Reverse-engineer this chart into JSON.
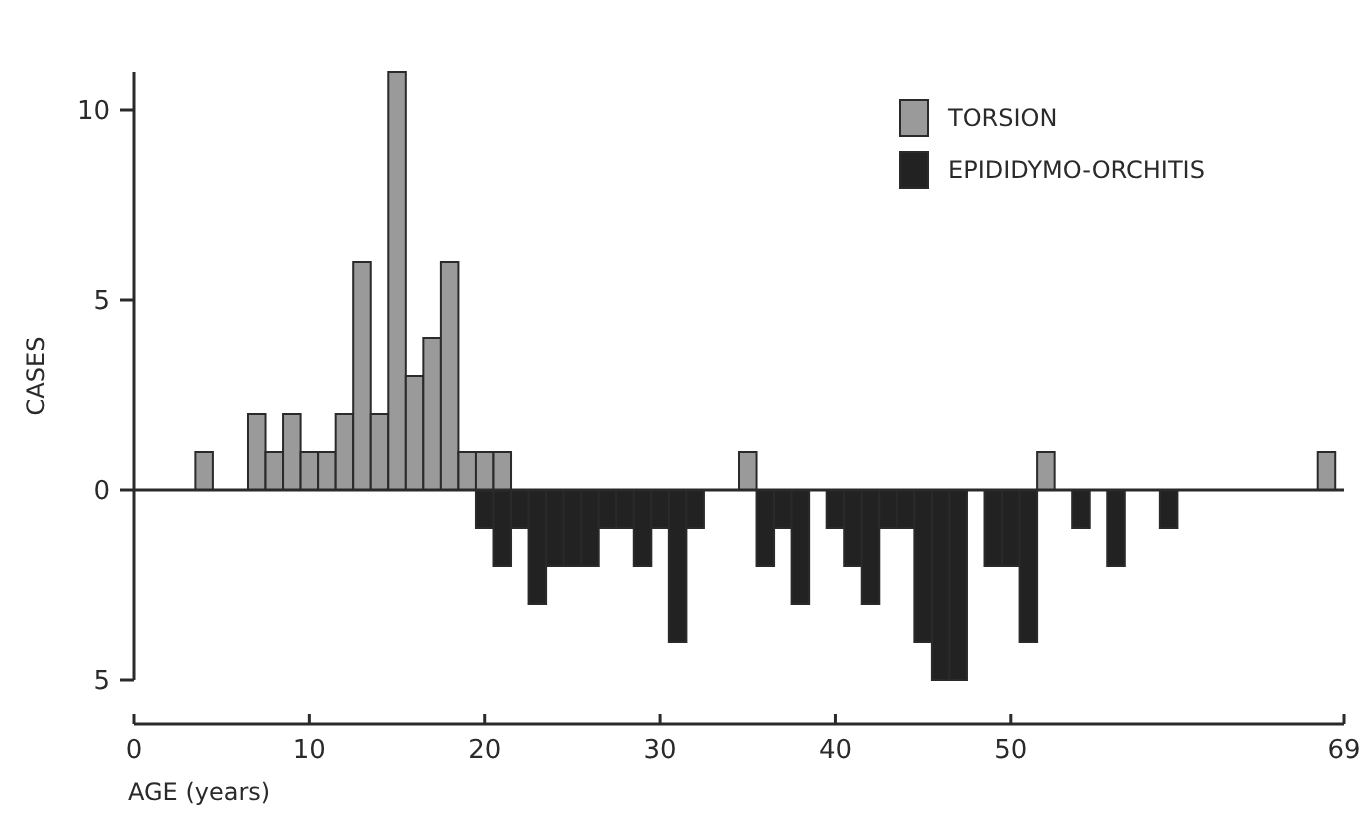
{
  "chart_data": {
    "type": "bar",
    "xlabel": "AGE (years)",
    "ylabel": "CASES",
    "series": [
      {
        "name": "TORSION",
        "color": "#9a9a9a",
        "x": [
          4,
          7,
          8,
          9,
          10,
          11,
          12,
          13,
          14,
          15,
          16,
          17,
          18,
          19,
          20,
          21,
          35,
          52,
          68
        ],
        "values": [
          1,
          2,
          1,
          2,
          1,
          1,
          2,
          6,
          2,
          11,
          3,
          4,
          6,
          1,
          1,
          1,
          1,
          1,
          1
        ]
      },
      {
        "name": "EPIDIDYMO-ORCHITIS",
        "color": "#222222",
        "x": [
          20,
          21,
          22,
          23,
          24,
          25,
          26,
          27,
          28,
          29,
          30,
          31,
          32,
          36,
          37,
          38,
          40,
          41,
          42,
          43,
          44,
          45,
          46,
          47,
          49,
          50,
          51,
          54,
          56,
          59
        ],
        "values": [
          -1,
          -2,
          -1,
          -3,
          -2,
          -2,
          -2,
          -1,
          -1,
          -2,
          -1,
          -4,
          -1,
          -2,
          -1,
          -3,
          -1,
          -2,
          -3,
          -1,
          -1,
          -4,
          -5,
          -5,
          -2,
          -2,
          -4,
          -1,
          -2,
          -1
        ]
      }
    ],
    "xlim": [
      0,
      69
    ],
    "xticks": [
      0,
      10,
      20,
      30,
      40,
      50,
      69
    ],
    "ylim": [
      -5,
      11
    ],
    "yticks": [
      {
        "value": -5,
        "label": "5"
      },
      0,
      5,
      10
    ],
    "ref_lines": [
      {
        "axis": "y",
        "value": 0
      }
    ],
    "legend": "top right"
  }
}
